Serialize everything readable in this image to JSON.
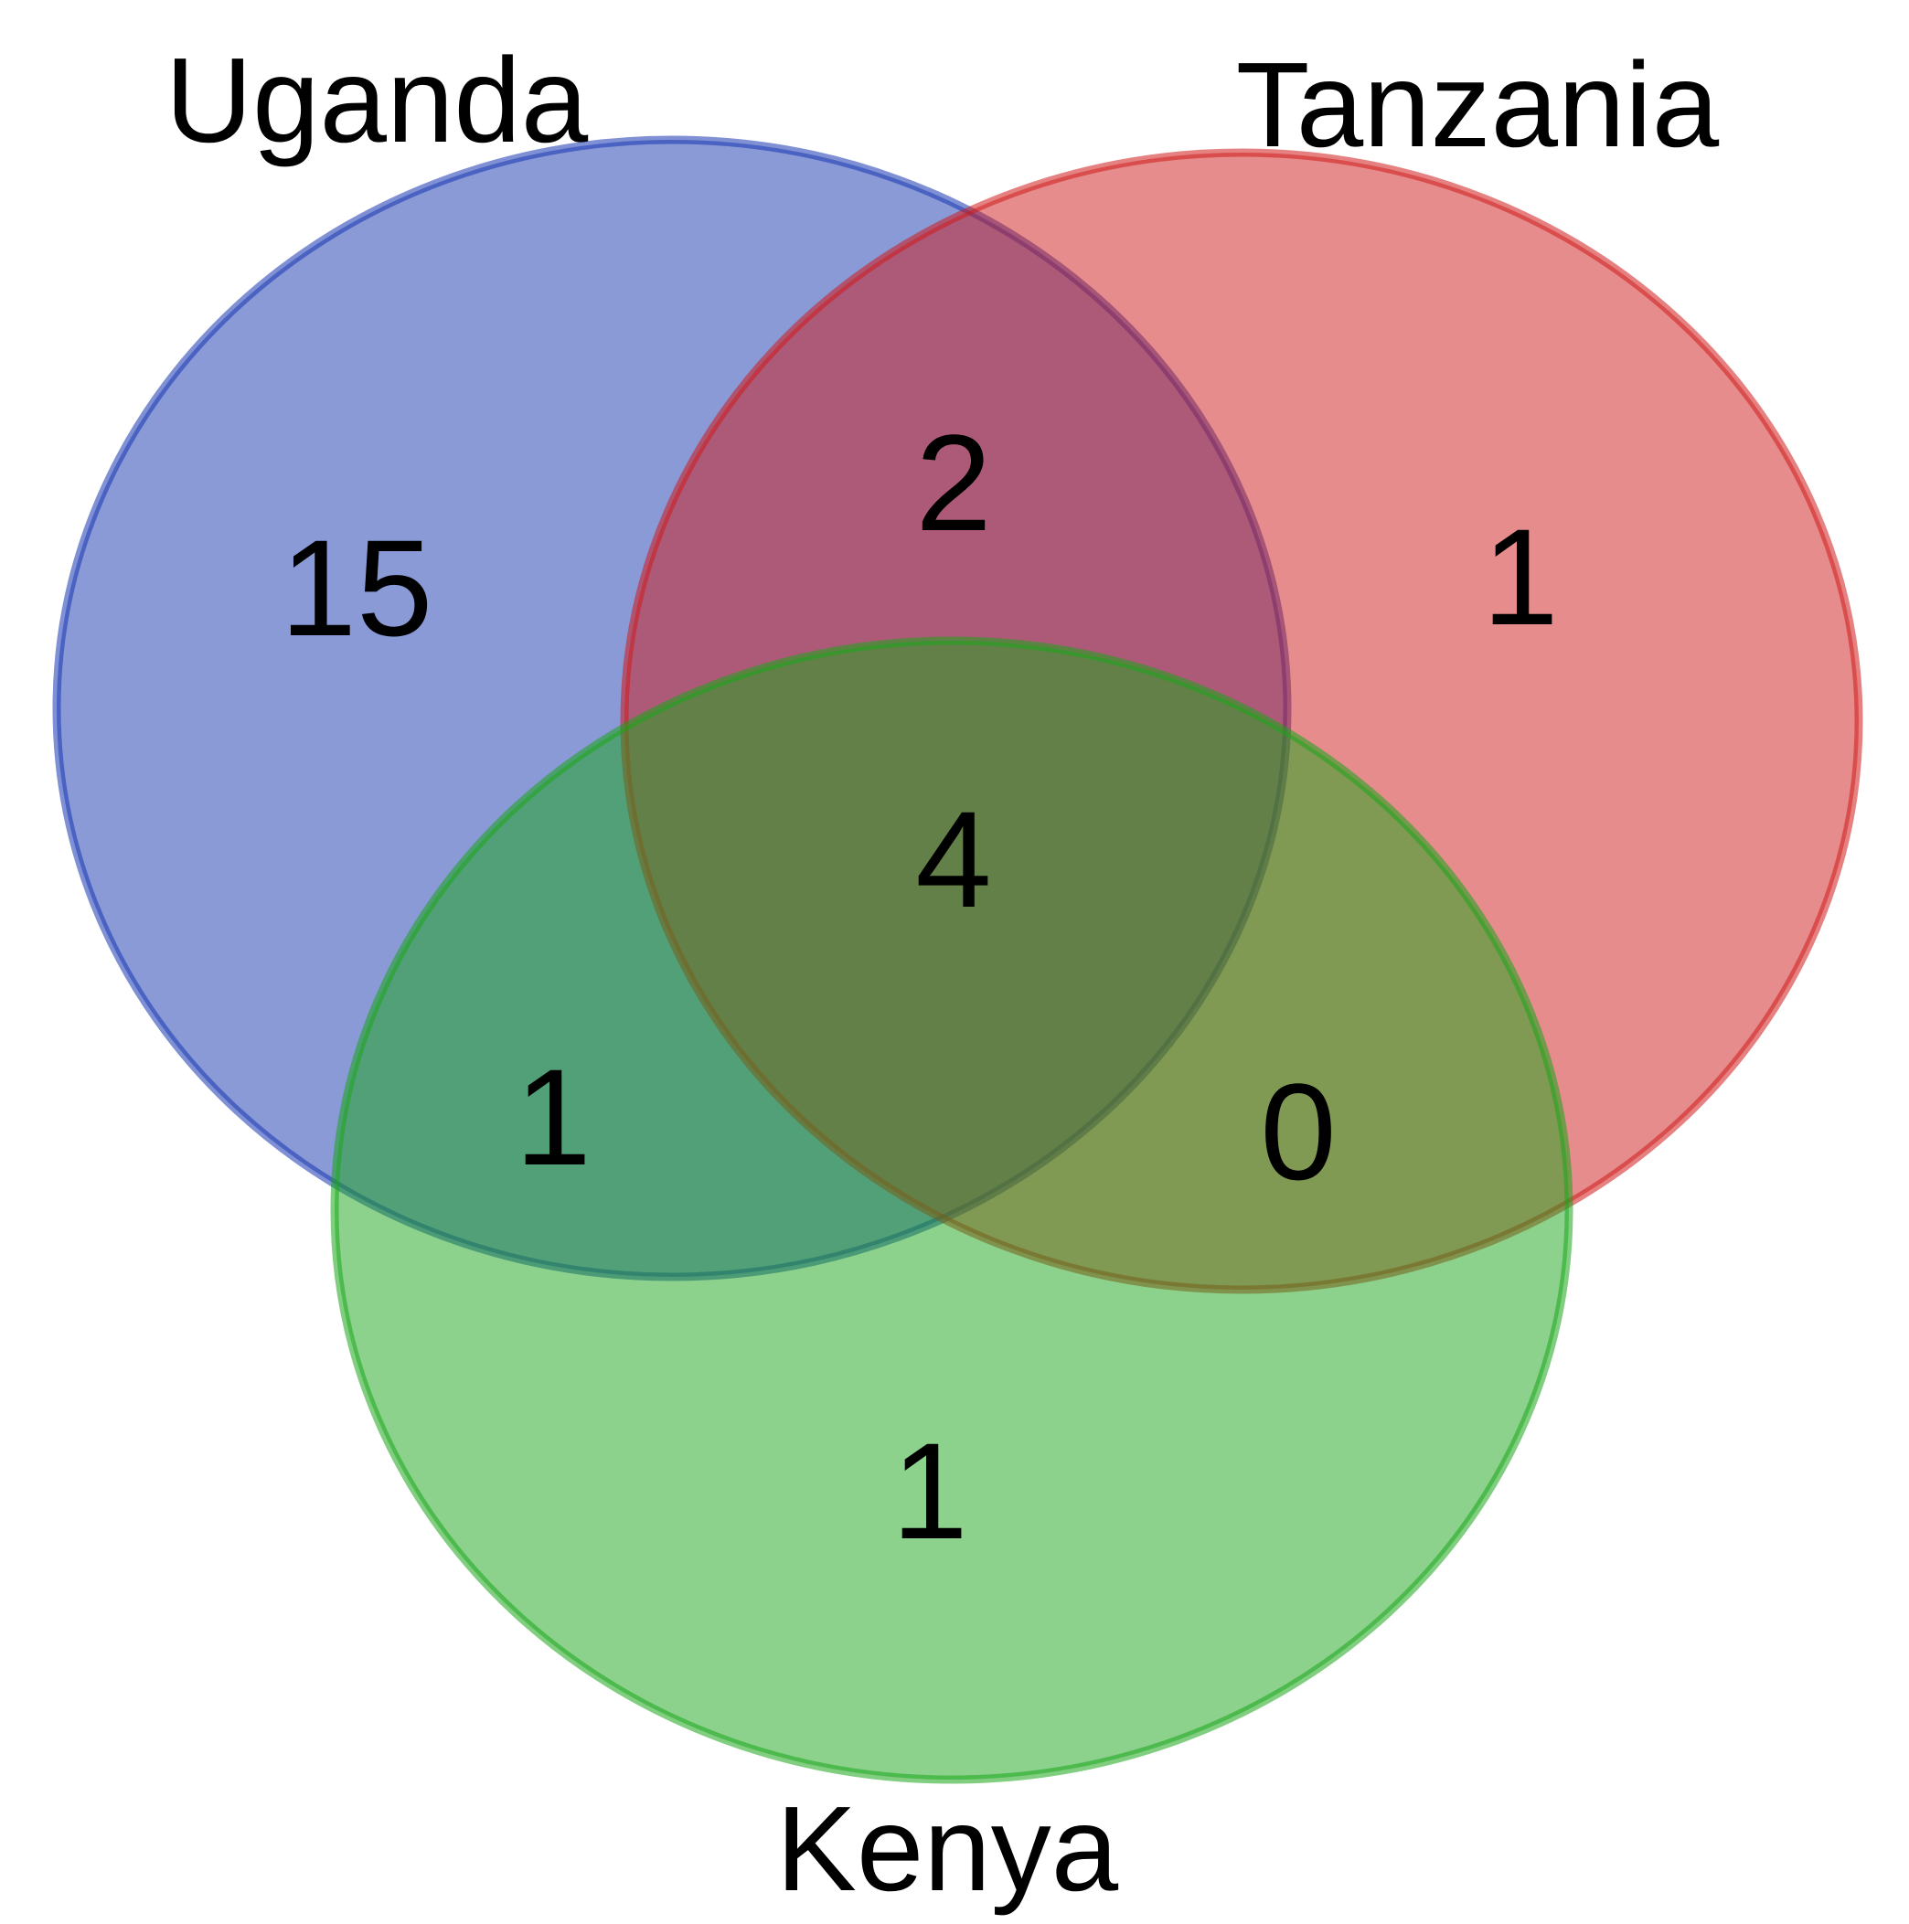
{
  "sets": [
    {
      "key": "uganda",
      "label": "Uganda",
      "color": "#1535b0"
    },
    {
      "key": "tanzania",
      "label": "Tanzania",
      "color": "#d01a1a"
    },
    {
      "key": "kenya",
      "label": "Kenya",
      "color": "#1aa51a"
    }
  ],
  "regions": {
    "uganda_only": "15",
    "tanzania_only": "1",
    "kenya_only": "1",
    "uganda_tanzania": "2",
    "uganda_kenya": "1",
    "tanzania_kenya": "0",
    "all_three": "4"
  }
}
